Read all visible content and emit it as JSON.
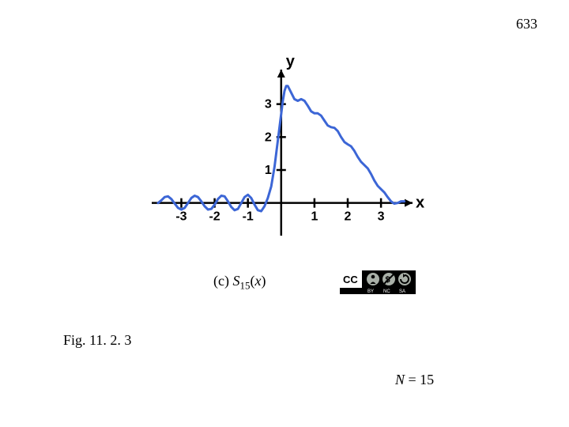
{
  "page_number": "633",
  "figure": {
    "caption_prefix": "(c) ",
    "caption_symbol": "S",
    "caption_sub": "15",
    "caption_arg": "(x)",
    "fig_label": "Fig. 11. 2. 3",
    "n_symbol": "N",
    "n_eq": " = 15"
  },
  "chart": {
    "type": "line",
    "x_axis_label": "x",
    "y_axis_label": "y",
    "xlim": [
      -3.7,
      3.9
    ],
    "ylim": [
      -0.8,
      4.0
    ],
    "x_ticks": [
      -3,
      -2,
      -1,
      1,
      2,
      3
    ],
    "y_ticks": [
      1,
      2,
      3
    ],
    "line_color": "#3c66d6",
    "line_width": 3,
    "axis_color": "#000000",
    "axis_width": 2.5,
    "tick_font_size": 16,
    "background_color": "#ffffff",
    "curve_points": [
      [
        -3.7,
        0.0
      ],
      [
        -3.6,
        0.08
      ],
      [
        -3.5,
        0.18
      ],
      [
        -3.4,
        0.2
      ],
      [
        -3.3,
        0.12
      ],
      [
        -3.2,
        -0.02
      ],
      [
        -3.1,
        -0.15
      ],
      [
        -3.0,
        -0.2
      ],
      [
        -2.9,
        -0.15
      ],
      [
        -2.8,
        0.0
      ],
      [
        -2.7,
        0.15
      ],
      [
        -2.6,
        0.22
      ],
      [
        -2.5,
        0.18
      ],
      [
        -2.4,
        0.05
      ],
      [
        -2.3,
        -0.1
      ],
      [
        -2.2,
        -0.2
      ],
      [
        -2.1,
        -0.18
      ],
      [
        -2.0,
        -0.05
      ],
      [
        -1.9,
        0.12
      ],
      [
        -1.8,
        0.22
      ],
      [
        -1.7,
        0.2
      ],
      [
        -1.6,
        0.05
      ],
      [
        -1.5,
        -0.12
      ],
      [
        -1.4,
        -0.22
      ],
      [
        -1.3,
        -0.18
      ],
      [
        -1.2,
        0.0
      ],
      [
        -1.1,
        0.18
      ],
      [
        -1.0,
        0.25
      ],
      [
        -0.9,
        0.15
      ],
      [
        -0.8,
        -0.05
      ],
      [
        -0.7,
        -0.22
      ],
      [
        -0.6,
        -0.25
      ],
      [
        -0.5,
        -0.1
      ],
      [
        -0.4,
        0.15
      ],
      [
        -0.3,
        0.5
      ],
      [
        -0.2,
        1.1
      ],
      [
        -0.1,
        1.9
      ],
      [
        0.0,
        2.7
      ],
      [
        0.05,
        3.1
      ],
      [
        0.1,
        3.4
      ],
      [
        0.15,
        3.55
      ],
      [
        0.2,
        3.55
      ],
      [
        0.3,
        3.35
      ],
      [
        0.4,
        3.15
      ],
      [
        0.5,
        3.1
      ],
      [
        0.6,
        3.15
      ],
      [
        0.7,
        3.1
      ],
      [
        0.8,
        2.95
      ],
      [
        0.9,
        2.78
      ],
      [
        1.0,
        2.72
      ],
      [
        1.1,
        2.72
      ],
      [
        1.2,
        2.65
      ],
      [
        1.3,
        2.5
      ],
      [
        1.4,
        2.35
      ],
      [
        1.5,
        2.3
      ],
      [
        1.6,
        2.28
      ],
      [
        1.7,
        2.18
      ],
      [
        1.8,
        2.0
      ],
      [
        1.9,
        1.85
      ],
      [
        2.0,
        1.78
      ],
      [
        2.1,
        1.72
      ],
      [
        2.2,
        1.58
      ],
      [
        2.3,
        1.4
      ],
      [
        2.4,
        1.25
      ],
      [
        2.5,
        1.15
      ],
      [
        2.6,
        1.05
      ],
      [
        2.7,
        0.88
      ],
      [
        2.8,
        0.68
      ],
      [
        2.9,
        0.52
      ],
      [
        3.0,
        0.42
      ],
      [
        3.1,
        0.32
      ],
      [
        3.2,
        0.18
      ],
      [
        3.3,
        0.05
      ],
      [
        3.4,
        -0.02
      ],
      [
        3.5,
        0.0
      ],
      [
        3.6,
        0.05
      ],
      [
        3.7,
        0.05
      ]
    ]
  },
  "cc": {
    "label": "CC",
    "by": "BY",
    "nc": "NC",
    "sa": "SA",
    "bg": "#000000",
    "fg": "#ffffff",
    "accent": "#a9b0a8"
  }
}
